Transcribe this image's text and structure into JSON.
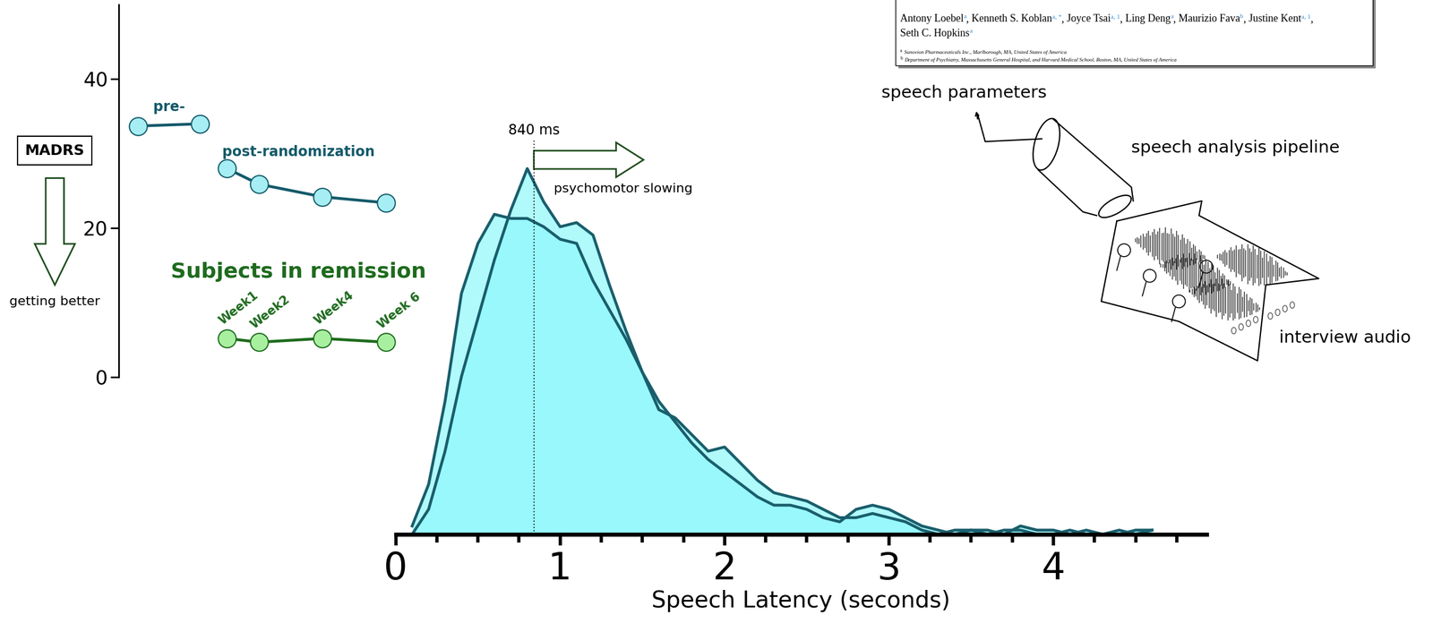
{
  "chart_data": [
    {
      "type": "line",
      "ylabel": "MADRS",
      "annotation": "getting better",
      "xlim": [
        -2.4,
        6.5
      ],
      "ylim": [
        0,
        50
      ],
      "yticks": [
        0,
        20,
        40
      ],
      "tick_labels": "y",
      "series": [
        {
          "name": "pre-",
          "color": "#145a6a",
          "marker": "o",
          "x": [
            -1.8,
            0.15
          ],
          "values": [
            33.7,
            34.0
          ]
        },
        {
          "name": "post-randomization",
          "color": "#145a6a",
          "marker": "o",
          "x": [
            1,
            2,
            4,
            6
          ],
          "values": [
            28.0,
            25.9,
            24.2,
            23.4
          ]
        },
        {
          "name": "Subjects in remission",
          "color": "#1e6b1e",
          "marker": "o",
          "x": [
            1,
            2,
            4,
            6
          ],
          "values": [
            5.2,
            4.7,
            5.2,
            4.7
          ],
          "point_labels": [
            "Week1",
            "Week2",
            "Week4",
            "Week 6"
          ]
        }
      ]
    },
    {
      "type": "area",
      "xlabel": "Speech Latency (seconds)",
      "color": "#8ff8fb",
      "xlim": [
        0,
        4.93
      ],
      "ylim": [
        0,
        1
      ],
      "xticks": [
        0,
        1,
        2,
        3,
        4
      ],
      "xticks_minor": [
        0.25,
        0.5,
        0.75,
        1.25,
        1.5,
        1.75,
        2.25,
        2.5,
        2.75,
        3.25,
        3.5,
        3.75,
        4.25,
        4.5,
        4.75
      ],
      "tick_labels": "x",
      "x": [
        0.1,
        0.2,
        0.3,
        0.4,
        0.5,
        0.6,
        0.7,
        0.8,
        0.9,
        1.0,
        1.1,
        1.2,
        1.3,
        1.4,
        1.5,
        1.6,
        1.7,
        1.8,
        1.9,
        2.0,
        2.1,
        2.2,
        2.3,
        2.4,
        2.5,
        2.6,
        2.7,
        2.8,
        2.9,
        3.0,
        3.1,
        3.2,
        3.3,
        3.4,
        3.5,
        3.6,
        3.7,
        3.8,
        3.9,
        4.0,
        4.1,
        4.2,
        4.3,
        4.4,
        4.5,
        4.6
      ],
      "series": [
        {
          "color": "#1a5e6c",
          "values": [
            0,
            0.06,
            0.2,
            0.38,
            0.52,
            0.66,
            0.78,
            0.88,
            0.8,
            0.74,
            0.75,
            0.72,
            0.6,
            0.49,
            0.39,
            0.3,
            0.28,
            0.24,
            0.2,
            0.21,
            0.17,
            0.13,
            0.1,
            0.09,
            0.08,
            0.06,
            0.04,
            0.04,
            0.05,
            0.04,
            0.03,
            0.01,
            0,
            0.01,
            0.01,
            0,
            0.01,
            0.01,
            0,
            0,
            0.01,
            0,
            0,
            0,
            0.01,
            0.01
          ]
        },
        {
          "color": "#1a5e6c",
          "values": [
            0.02,
            0.12,
            0.32,
            0.58,
            0.7,
            0.77,
            0.76,
            0.76,
            0.74,
            0.71,
            0.7,
            0.61,
            0.54,
            0.47,
            0.39,
            0.32,
            0.27,
            0.22,
            0.18,
            0.15,
            0.12,
            0.09,
            0.07,
            0.07,
            0.06,
            0.04,
            0.03,
            0.06,
            0.07,
            0.06,
            0.04,
            0.02,
            0.01,
            0,
            0.01,
            0.01,
            0,
            0.02,
            0.01,
            0.01,
            0,
            0.01,
            0,
            0.01,
            0,
            0.01
          ]
        }
      ],
      "reference_line": {
        "x": 0.84,
        "label": "840 ms"
      },
      "annotation": "psychomotor slowing"
    }
  ],
  "diagram": {
    "output": "speech parameters",
    "pipeline": "speech analysis pipeline",
    "input": "interview audio"
  },
  "paper": {
    "author_separator": ", ",
    "authors": [
      {
        "name": "Antony Loebel",
        "affiliations": "a"
      },
      {
        "name": "Kenneth S. Koblan",
        "affiliations": "a, *"
      },
      {
        "name": "Joyce Tsai",
        "affiliations": "a, 1"
      },
      {
        "name": "Ling Deng",
        "affiliations": "a"
      },
      {
        "name": "Maurizio Fava",
        "affiliations": "b"
      },
      {
        "name": "Justine Kent",
        "affiliations": "a, 1"
      },
      {
        "name": "Seth C. Hopkins",
        "affiliations": "a"
      }
    ],
    "affiliations": [
      {
        "mark": "a",
        "text": "Sunovion Pharmaceuticals Inc., Marlborough, MA, United States of America"
      },
      {
        "mark": "b",
        "text": "Department of Psychiatry, Massachusetts General Hospital, and Harvard Medical School, Boston, MA, United States of America"
      }
    ]
  }
}
